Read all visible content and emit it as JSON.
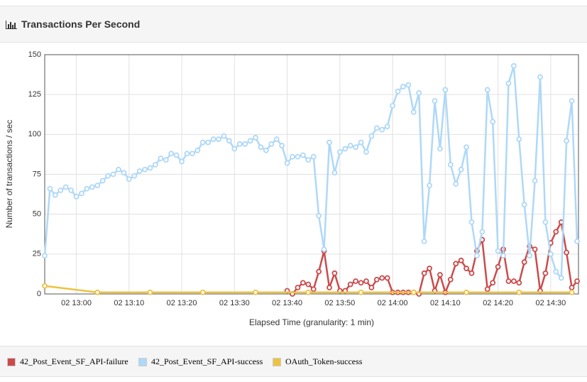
{
  "chart_data": {
    "type": "line",
    "title": "Transactions Per Second",
    "x_label": "Elapsed Time (granularity: 1 min)",
    "y_label": "Number of transactions / sec",
    "x": [
      "02 12:54",
      "02 12:55",
      "02 12:56",
      "02 12:57",
      "02 12:58",
      "02 12:59",
      "02 13:00",
      "02 13:01",
      "02 13:02",
      "02 13:03",
      "02 13:04",
      "02 13:05",
      "02 13:06",
      "02 13:07",
      "02 13:08",
      "02 13:09",
      "02 13:10",
      "02 13:11",
      "02 13:12",
      "02 13:13",
      "02 13:14",
      "02 13:15",
      "02 13:16",
      "02 13:17",
      "02 13:18",
      "02 13:19",
      "02 13:20",
      "02 13:21",
      "02 13:22",
      "02 13:23",
      "02 13:24",
      "02 13:25",
      "02 13:26",
      "02 13:27",
      "02 13:28",
      "02 13:29",
      "02 13:30",
      "02 13:31",
      "02 13:32",
      "02 13:33",
      "02 13:34",
      "02 13:35",
      "02 13:36",
      "02 13:37",
      "02 13:38",
      "02 13:39",
      "02 13:40",
      "02 13:41",
      "02 13:42",
      "02 13:43",
      "02 13:44",
      "02 13:45",
      "02 13:46",
      "02 13:47",
      "02 13:48",
      "02 13:49",
      "02 13:50",
      "02 13:51",
      "02 13:52",
      "02 13:53",
      "02 13:54",
      "02 13:55",
      "02 13:56",
      "02 13:57",
      "02 13:58",
      "02 13:59",
      "02 14:00",
      "02 14:01",
      "02 14:02",
      "02 14:03",
      "02 14:04",
      "02 14:05",
      "02 14:06",
      "02 14:07",
      "02 14:08",
      "02 14:09",
      "02 14:10",
      "02 14:11",
      "02 14:12",
      "02 14:13",
      "02 14:14",
      "02 14:15",
      "02 14:16",
      "02 14:17",
      "02 14:18",
      "02 14:19",
      "02 14:20",
      "02 14:21",
      "02 14:22",
      "02 14:23",
      "02 14:24",
      "02 14:25",
      "02 14:26",
      "02 14:27",
      "02 14:28",
      "02 14:29",
      "02 14:30",
      "02 14:31",
      "02 14:32",
      "02 14:33",
      "02 14:34",
      "02 14:35"
    ],
    "series": [
      {
        "name": "42_Post_Event_SF_API-failure",
        "color": "#cb4b4b",
        "values": [
          null,
          null,
          null,
          null,
          null,
          null,
          null,
          null,
          null,
          null,
          null,
          null,
          null,
          null,
          null,
          null,
          null,
          null,
          null,
          null,
          null,
          null,
          null,
          null,
          null,
          null,
          null,
          null,
          null,
          null,
          null,
          null,
          null,
          null,
          null,
          null,
          null,
          null,
          null,
          null,
          null,
          null,
          null,
          null,
          null,
          null,
          2,
          0,
          4,
          7,
          6,
          3,
          14,
          27,
          4,
          13,
          2,
          2,
          6,
          8,
          7,
          8,
          4,
          9,
          10,
          10,
          1,
          1,
          1,
          1,
          1,
          0,
          13,
          16,
          2,
          12,
          1,
          9,
          19,
          21,
          16,
          13,
          27,
          34,
          3,
          7,
          17,
          28,
          8,
          8,
          7,
          20,
          30,
          28,
          2,
          13,
          32,
          39,
          45,
          26,
          4,
          8
        ]
      },
      {
        "name": "42_Post_Event_SF_API-success",
        "color": "#afd8f8",
        "values": [
          24,
          66,
          62,
          65,
          67,
          65,
          61,
          63,
          66,
          67,
          68,
          71,
          74,
          75,
          78,
          76,
          72,
          74,
          77,
          78,
          79,
          81,
          85,
          84,
          88,
          87,
          83,
          88,
          88,
          90,
          95,
          95,
          97,
          97,
          99,
          96,
          91,
          94,
          94,
          96,
          98,
          92,
          90,
          94,
          97,
          93,
          82,
          86,
          86,
          87,
          84,
          86,
          49,
          28,
          95,
          76,
          89,
          91,
          93,
          92,
          95,
          89,
          99,
          104,
          103,
          105,
          118,
          127,
          130,
          131,
          114,
          126,
          33,
          68,
          121,
          91,
          128,
          81,
          69,
          78,
          92,
          45,
          24,
          39,
          128,
          108,
          27,
          24,
          132,
          143,
          97,
          56,
          24,
          71,
          136,
          45,
          25,
          14,
          10,
          96,
          121,
          33
        ]
      },
      {
        "name": "OAuth_Token-success",
        "color": "#edc240",
        "x": [
          "02 12:54",
          "02 13:04",
          "02 13:14",
          "02 13:24",
          "02 13:34",
          "02 13:44",
          "02 13:54",
          "02 14:04",
          "02 14:14",
          "02 14:24",
          "02 14:34"
        ],
        "values": [
          5,
          1,
          1,
          1,
          1,
          1,
          1,
          1,
          1,
          1,
          1
        ]
      }
    ],
    "xlim": [
      "02 12:54",
      "02 14:35"
    ],
    "xticks": [
      "02 13:00",
      "02 13:10",
      "02 13:20",
      "02 13:30",
      "02 13:40",
      "02 13:50",
      "02 14:00",
      "02 14:10",
      "02 14:20",
      "02 14:30"
    ],
    "ylim": [
      0,
      150
    ],
    "yticks": [
      0,
      25,
      50,
      75,
      100,
      125,
      150
    ],
    "grid": true,
    "legend": "bottom"
  }
}
